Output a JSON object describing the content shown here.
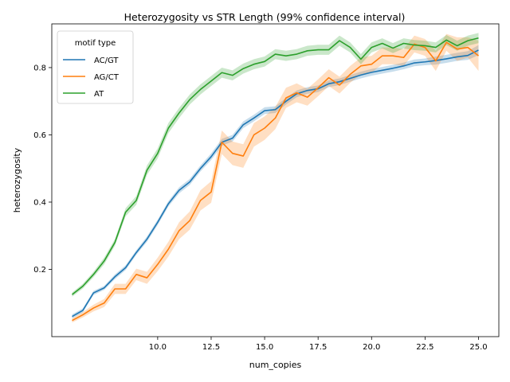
{
  "chart_data": {
    "type": "line",
    "title": "Heterozygosity vs STR Length (99% confidence interval)",
    "xlabel": "num_copies",
    "ylabel": "heterozygosity",
    "xlim": [
      5.05,
      25.95
    ],
    "ylim": [
      0.0,
      0.93
    ],
    "xticks": [
      10.0,
      12.5,
      15.0,
      17.5,
      20.0,
      22.5,
      25.0
    ],
    "xtick_labels": [
      "10.0",
      "12.5",
      "15.0",
      "17.5",
      "20.0",
      "22.5",
      "25.0"
    ],
    "yticks": [
      0.2,
      0.4,
      0.6,
      0.8
    ],
    "ytick_labels": [
      "0.2",
      "0.4",
      "0.6",
      "0.8"
    ],
    "grid": false,
    "legend": {
      "title": "motif type",
      "position": "top-left"
    },
    "x": [
      6,
      6.5,
      7,
      7.5,
      8,
      8.5,
      9,
      9.5,
      10,
      10.5,
      11,
      11.5,
      12,
      12.5,
      13,
      13.5,
      14,
      14.5,
      15,
      15.5,
      16,
      16.5,
      17,
      17.5,
      18,
      18.5,
      19,
      19.5,
      20,
      20.5,
      21,
      21.5,
      22,
      22.5,
      23,
      23.5,
      24,
      24.5,
      25
    ],
    "series": [
      {
        "name": "AC/GT",
        "color": "#1f77b4",
        "values": [
          0.06,
          0.078,
          0.13,
          0.145,
          0.178,
          0.205,
          0.25,
          0.29,
          0.34,
          0.395,
          0.435,
          0.46,
          0.5,
          0.535,
          0.578,
          0.59,
          0.63,
          0.65,
          0.672,
          0.675,
          0.7,
          0.722,
          0.732,
          0.737,
          0.752,
          0.758,
          0.768,
          0.778,
          0.786,
          0.792,
          0.798,
          0.805,
          0.814,
          0.817,
          0.821,
          0.826,
          0.832,
          0.836,
          0.852
        ],
        "band": [
          0.006,
          0.006,
          0.006,
          0.006,
          0.007,
          0.007,
          0.007,
          0.008,
          0.008,
          0.008,
          0.009,
          0.009,
          0.009,
          0.01,
          0.01,
          0.01,
          0.01,
          0.01,
          0.01,
          0.01,
          0.01,
          0.01,
          0.01,
          0.01,
          0.01,
          0.01,
          0.01,
          0.01,
          0.01,
          0.01,
          0.01,
          0.01,
          0.01,
          0.01,
          0.012,
          0.012,
          0.012,
          0.013,
          0.015
        ]
      },
      {
        "name": "AG/CT",
        "color": "#ff7f0e",
        "values": [
          0.048,
          0.065,
          0.085,
          0.1,
          0.142,
          0.142,
          0.185,
          0.175,
          0.215,
          0.26,
          0.315,
          0.345,
          0.405,
          0.43,
          0.578,
          0.545,
          0.537,
          0.6,
          0.62,
          0.65,
          0.71,
          0.725,
          0.712,
          0.74,
          0.77,
          0.748,
          0.78,
          0.805,
          0.81,
          0.835,
          0.835,
          0.83,
          0.87,
          0.86,
          0.82,
          0.875,
          0.855,
          0.86,
          0.835
        ],
        "band": [
          0.006,
          0.008,
          0.01,
          0.012,
          0.015,
          0.015,
          0.017,
          0.018,
          0.02,
          0.022,
          0.025,
          0.027,
          0.03,
          0.032,
          0.035,
          0.035,
          0.035,
          0.035,
          0.035,
          0.033,
          0.03,
          0.028,
          0.025,
          0.025,
          0.025,
          0.025,
          0.025,
          0.025,
          0.025,
          0.025,
          0.025,
          0.025,
          0.025,
          0.025,
          0.03,
          0.025,
          0.035,
          0.03,
          0.045
        ]
      },
      {
        "name": "AT",
        "color": "#2ca02c",
        "values": [
          0.125,
          0.15,
          0.185,
          0.225,
          0.28,
          0.37,
          0.405,
          0.495,
          0.545,
          0.62,
          0.665,
          0.705,
          0.735,
          0.76,
          0.785,
          0.777,
          0.797,
          0.81,
          0.818,
          0.84,
          0.835,
          0.84,
          0.85,
          0.853,
          0.853,
          0.88,
          0.86,
          0.825,
          0.86,
          0.872,
          0.858,
          0.872,
          0.867,
          0.865,
          0.86,
          0.882,
          0.865,
          0.88,
          0.888
        ],
        "band": [
          0.006,
          0.007,
          0.008,
          0.01,
          0.01,
          0.012,
          0.013,
          0.014,
          0.015,
          0.015,
          0.015,
          0.015,
          0.015,
          0.015,
          0.015,
          0.015,
          0.015,
          0.015,
          0.015,
          0.015,
          0.015,
          0.015,
          0.015,
          0.015,
          0.015,
          0.015,
          0.015,
          0.015,
          0.015,
          0.015,
          0.015,
          0.015,
          0.015,
          0.015,
          0.015,
          0.015,
          0.015,
          0.015,
          0.015
        ]
      }
    ]
  }
}
